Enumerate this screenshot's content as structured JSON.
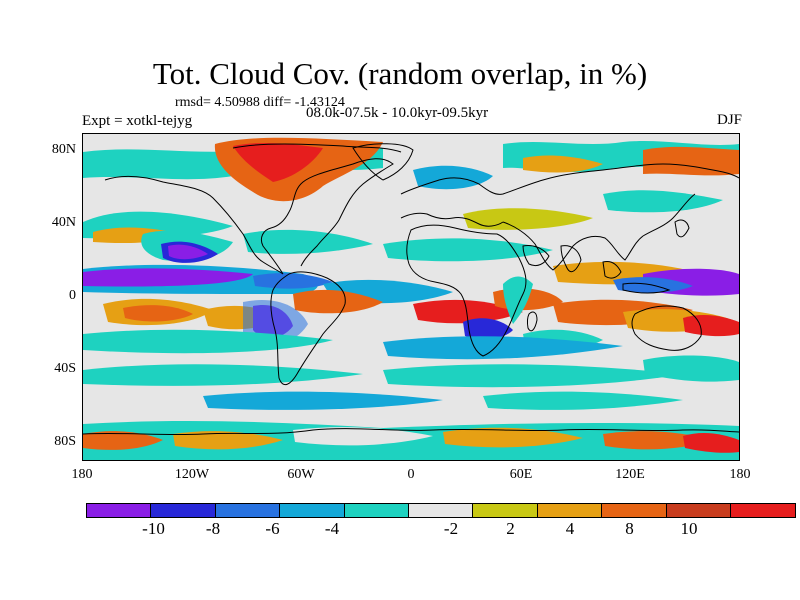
{
  "title": "Tot. Cloud Cov. (random overlap, in %)",
  "stats": "rmsd= 4.50988 diff= -1.43124",
  "experiment": "Expt = xotkl-tejyg",
  "period": "08.0k-07.5k - 10.0kyr-09.5kyr",
  "season": "DJF",
  "lat_ticks": [
    "80N",
    "40N",
    "0",
    "40S",
    "80S"
  ],
  "lon_ticks": [
    "180",
    "120W",
    "60W",
    "0",
    "60E",
    "120E",
    "180"
  ],
  "colorbar": {
    "colors": [
      "#8a1ee6",
      "#2828d8",
      "#2872e0",
      "#14a8d8",
      "#1ed2c0",
      "#e6e6e6",
      "#c8c814",
      "#e6a014",
      "#e66414",
      "#c83c1e",
      "#e61e1e"
    ],
    "labels": [
      "-10",
      "-8",
      "-6",
      "-4",
      "-2",
      "2",
      "4",
      "8",
      "10"
    ]
  },
  "colors": {
    "land_outline": "#000000",
    "background": "#ffffff"
  }
}
